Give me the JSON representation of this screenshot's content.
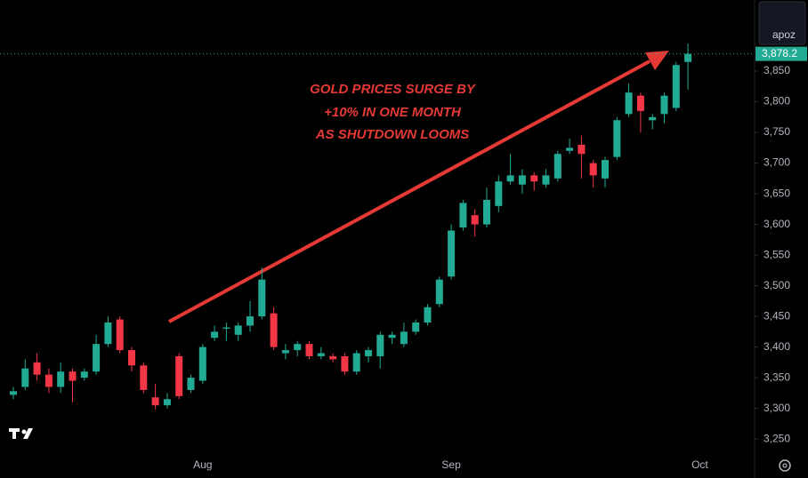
{
  "chart_data": {
    "type": "candlestick",
    "annotation": [
      "GOLD PRICES SURGE BY",
      "+10% IN ONE MONTH",
      "AS SHUTDOWN LOOMS"
    ],
    "categories": [
      null,
      null,
      null,
      null,
      null,
      null,
      null,
      null,
      null,
      null,
      null,
      null,
      null,
      null,
      null,
      null,
      "Aug",
      null,
      null,
      null,
      null,
      null,
      null,
      null,
      null,
      null,
      null,
      null,
      null,
      null,
      null,
      null,
      null,
      null,
      null,
      null,
      null,
      "Sep",
      null,
      null,
      null,
      null,
      null,
      null,
      null,
      null,
      null,
      null,
      null,
      null,
      null,
      null,
      null,
      null,
      null,
      null,
      null,
      null,
      "Oct"
    ],
    "open": [
      3322,
      3335,
      3375,
      3355,
      3335,
      3360,
      3350,
      3360,
      3405,
      3445,
      3395,
      3370,
      3318,
      3305,
      3385,
      3330,
      3345,
      3415,
      3430,
      3420,
      3435,
      3450,
      3455,
      3390,
      3395,
      3405,
      3385,
      3385,
      3385,
      3360,
      3385,
      3385,
      3415,
      3405,
      3425,
      3440,
      3470,
      3515,
      3595,
      3615,
      3600,
      3630,
      3670,
      3665,
      3680,
      3665,
      3675,
      3720,
      3730,
      3700,
      3675,
      3710,
      3780,
      3810,
      3770,
      3780,
      3790,
      3865,
      null
    ],
    "high": [
      3335,
      3380,
      3390,
      3365,
      3375,
      3365,
      3365,
      3420,
      3450,
      3450,
      3400,
      3375,
      3340,
      3325,
      3390,
      3355,
      3405,
      3435,
      3440,
      3440,
      3475,
      3530,
      3465,
      3405,
      3410,
      3410,
      3400,
      3390,
      3390,
      3395,
      3400,
      3425,
      3425,
      3440,
      3445,
      3470,
      3515,
      3600,
      3640,
      3625,
      3660,
      3680,
      3715,
      3690,
      3685,
      3690,
      3720,
      3740,
      3745,
      3705,
      3710,
      3775,
      3830,
      3815,
      3780,
      3815,
      3865,
      3895,
      null
    ],
    "low": [
      3315,
      3330,
      3345,
      3325,
      3325,
      3310,
      3345,
      3355,
      3400,
      3390,
      3360,
      3325,
      3298,
      3300,
      3315,
      3325,
      3340,
      3410,
      3410,
      3410,
      3425,
      3445,
      3395,
      3380,
      3385,
      3380,
      3380,
      3375,
      3355,
      3355,
      3375,
      3365,
      3405,
      3400,
      3420,
      3435,
      3465,
      3510,
      3590,
      3580,
      3595,
      3620,
      3665,
      3650,
      3655,
      3660,
      3670,
      3715,
      3675,
      3660,
      3660,
      3705,
      3775,
      3750,
      3755,
      3765,
      3785,
      3820,
      null
    ],
    "close": [
      3328,
      3365,
      3355,
      3335,
      3360,
      3345,
      3360,
      3405,
      3440,
      3395,
      3370,
      3330,
      3305,
      3315,
      3320,
      3350,
      3400,
      3425,
      3432,
      3435,
      3450,
      3510,
      3400,
      3395,
      3405,
      3385,
      3390,
      3380,
      3360,
      3390,
      3395,
      3420,
      3420,
      3425,
      3440,
      3465,
      3510,
      3590,
      3635,
      3600,
      3640,
      3670,
      3680,
      3680,
      3670,
      3680,
      3715,
      3725,
      3715,
      3680,
      3705,
      3770,
      3815,
      3785,
      3775,
      3810,
      3860,
      3878.2,
      null
    ],
    "up_color": "#22ab94",
    "down_color": "#f23645",
    "ylim": [
      3227,
      3966
    ],
    "yticks": [
      {
        "value": 3250,
        "label": "3,250"
      },
      {
        "value": 3300,
        "label": "3,300"
      },
      {
        "value": 3350,
        "label": "3,350"
      },
      {
        "value": 3400,
        "label": "3,400"
      },
      {
        "value": 3450,
        "label": "3,450"
      },
      {
        "value": 3500,
        "label": "3,500"
      },
      {
        "value": 3550,
        "label": "3,550"
      },
      {
        "value": 3600,
        "label": "3,600"
      },
      {
        "value": 3650,
        "label": "3,650"
      },
      {
        "value": 3700,
        "label": "3,700"
      },
      {
        "value": 3750,
        "label": "3,750"
      },
      {
        "value": 3800,
        "label": "3,800"
      },
      {
        "value": 3850,
        "label": "3,850"
      }
    ],
    "last_price": {
      "value": 3878.2,
      "label": "3,878.2"
    },
    "grid": false
  },
  "toolbar_label": "apoz"
}
